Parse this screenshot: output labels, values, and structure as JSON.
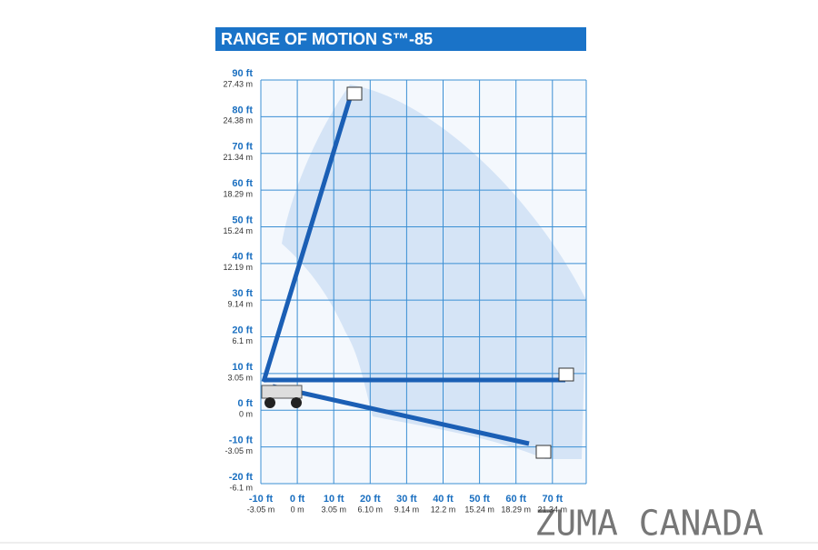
{
  "title": "RANGE OF MOTION S™-85",
  "y_axis": {
    "ticks": [
      {
        "ft": "90 ft",
        "m": "27.43 m"
      },
      {
        "ft": "80 ft",
        "m": "24.38 m"
      },
      {
        "ft": "70 ft",
        "m": "21.34 m"
      },
      {
        "ft": "60 ft",
        "m": "18.29 m"
      },
      {
        "ft": "50 ft",
        "m": "15.24 m"
      },
      {
        "ft": "40 ft",
        "m": "12.19 m"
      },
      {
        "ft": "30 ft",
        "m": "9.14 m"
      },
      {
        "ft": "20 ft",
        "m": "6.1 m"
      },
      {
        "ft": "10 ft",
        "m": "3.05 m"
      },
      {
        "ft": "0 ft",
        "m": "0 m"
      },
      {
        "ft": "-10 ft",
        "m": "-3.05 m"
      },
      {
        "ft": "-20 ft",
        "m": "-6.1 m"
      }
    ]
  },
  "x_axis": {
    "ticks": [
      {
        "ft": "-10 ft",
        "m": "-3.05 m"
      },
      {
        "ft": "0 ft",
        "m": "0 m"
      },
      {
        "ft": "10 ft",
        "m": "3.05 m"
      },
      {
        "ft": "20 ft",
        "m": "6.10 m"
      },
      {
        "ft": "30 ft",
        "m": "9.14 m"
      },
      {
        "ft": "40 ft",
        "m": "12.2 m"
      },
      {
        "ft": "50 ft",
        "m": "15.24 m"
      },
      {
        "ft": "60 ft",
        "m": "18.29 m"
      },
      {
        "ft": "70 ft",
        "m": "21.34 m"
      }
    ]
  },
  "watermark": "ZUMA CANADA"
}
